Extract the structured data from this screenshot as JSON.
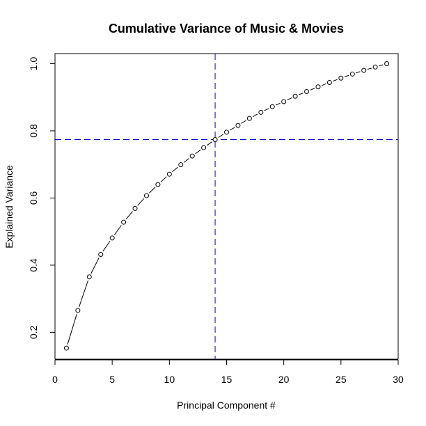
{
  "chart_data": {
    "type": "scatter",
    "title": "Cumulative Variance of Music & Movies",
    "xlabel": "Principal Component #",
    "ylabel": "Explained Variance",
    "xlim": [
      0,
      30
    ],
    "ylim": [
      0.12,
      1.03
    ],
    "xticks": [
      0,
      5,
      10,
      15,
      20,
      25,
      30
    ],
    "yticks": [
      0.2,
      0.4,
      0.6,
      0.8,
      1.0
    ],
    "xtick_labels": [
      "0",
      "5",
      "10",
      "15",
      "20",
      "25",
      "30"
    ],
    "ytick_labels": [
      "0.2",
      "0.4",
      "0.6",
      "0.8",
      "1.0"
    ],
    "grid": false,
    "series": [
      {
        "style": "points-connected",
        "color": "#000000",
        "x": [
          1,
          2,
          3,
          4,
          5,
          6,
          7,
          8,
          9,
          10,
          11,
          12,
          13,
          14,
          15,
          16,
          17,
          18,
          19,
          20,
          21,
          22,
          23,
          24,
          25,
          26,
          27,
          28,
          29
        ],
        "y": [
          0.153,
          0.265,
          0.365,
          0.432,
          0.481,
          0.528,
          0.569,
          0.607,
          0.64,
          0.671,
          0.699,
          0.725,
          0.75,
          0.774,
          0.796,
          0.816,
          0.837,
          0.855,
          0.872,
          0.887,
          0.903,
          0.917,
          0.931,
          0.944,
          0.957,
          0.969,
          0.98,
          0.99,
          1.0
        ]
      }
    ],
    "reference_lines": [
      {
        "orientation": "vertical",
        "value": 14,
        "color": "#0000cc",
        "style": "dashed"
      },
      {
        "orientation": "horizontal",
        "value": 0.774,
        "color": "#0000cc",
        "style": "dashed"
      }
    ]
  }
}
